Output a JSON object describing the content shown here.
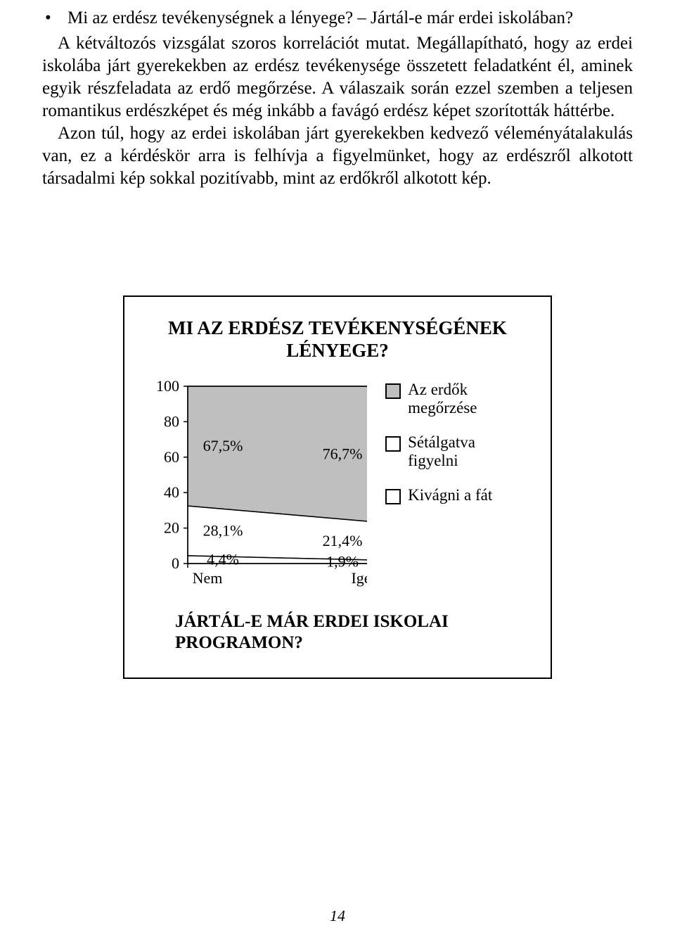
{
  "bullet": {
    "dot": "•",
    "text": "Mi az erdész tevékenységnek a lényege? – Jártál-e már erdei iskolában?"
  },
  "paragraphs": [
    "A kétváltozós vizsgálat szoros korrelációt mutat. Megállapítható, hogy az erdei iskolába járt gyerekekben az erdész tevékenysége összetett feladatként él, aminek egyik részfeladata az erdő megőrzése. A válaszaik során ezzel szemben a teljesen romantikus erdészképet és még inkább a favágó erdész képet szorították háttérbe.",
    "Azon túl, hogy az erdei iskolában járt gyerekekben kedvező véleményátalakulás van, ez a kérdéskör arra is felhívja a figyelmünket, hogy az erdészről alkotott társadalmi kép sokkal pozitívabb, mint az erdőkről alkotott kép."
  ],
  "chart": {
    "type": "stacked-area",
    "title": "MI AZ ERDÉSZ TEVÉKENYSÉGÉNEK LÉNYEGE?",
    "xcats": [
      "Nem",
      "Igen"
    ],
    "yticks": [
      0,
      20,
      40,
      60,
      80,
      100
    ],
    "ylim": [
      0,
      100
    ],
    "series": [
      {
        "name": "Kivágni a fát",
        "color": "#ffffff",
        "values": [
          4.4,
          1.9
        ],
        "labels": [
          "4,4%",
          "1,9%"
        ]
      },
      {
        "name": "Sétálgatva figyelni",
        "color": "#ffffff",
        "values": [
          28.1,
          21.4
        ],
        "labels": [
          "28,1%",
          "21,4%"
        ]
      },
      {
        "name": "Az erdők megőrzése",
        "color": "#bfbfbf",
        "values": [
          67.5,
          76.7
        ],
        "labels": [
          "67,5%",
          "76,7%"
        ]
      }
    ],
    "axis_color": "#000000",
    "grid_color": "#000000",
    "background_color": "#ffffff",
    "tick_font_size": 22,
    "series_label_font_size": 22,
    "sub_question": "JÁRTÁL-E MÁR ERDEI ISKOLAI PROGRAMON?"
  },
  "page_number": "14"
}
